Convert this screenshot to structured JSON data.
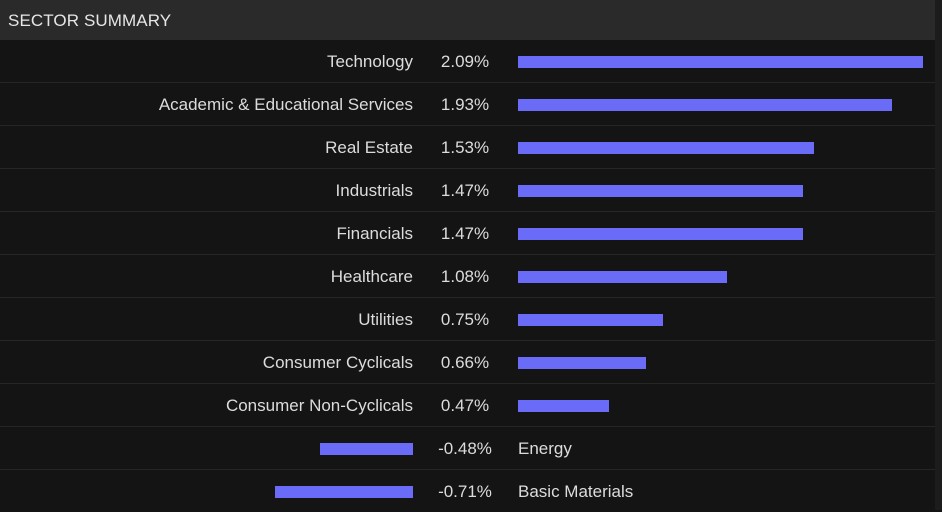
{
  "header": {
    "title": "SECTOR SUMMARY"
  },
  "colors": {
    "bar": "#6a6cf8",
    "background": "#141414",
    "header": "#2a2a2a"
  },
  "chart_data": {
    "type": "bar",
    "orientation": "horizontal-diverging",
    "title": "SECTOR SUMMARY",
    "unit": "%",
    "categories": [
      "Technology",
      "Academic & Educational Services",
      "Real Estate",
      "Industrials",
      "Financials",
      "Healthcare",
      "Utilities",
      "Consumer Cyclicals",
      "Consumer Non-Cyclicals",
      "Energy",
      "Basic Materials"
    ],
    "values": [
      2.09,
      1.93,
      1.53,
      1.47,
      1.47,
      1.08,
      0.75,
      0.66,
      0.47,
      -0.48,
      -0.71
    ],
    "value_labels": [
      "2.09%",
      "1.93%",
      "1.53%",
      "1.47%",
      "1.47%",
      "1.08%",
      "0.75%",
      "0.66%",
      "0.47%",
      "-0.48%",
      "-0.71%"
    ]
  }
}
